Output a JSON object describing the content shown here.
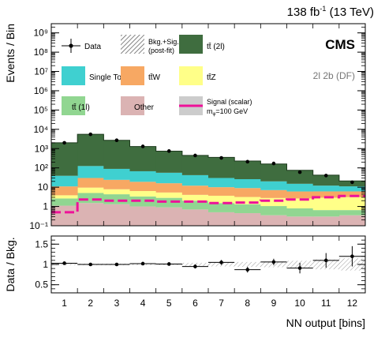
{
  "header": {
    "lumi_value": "138 fb",
    "lumi_exp": "-1",
    "lumi_energy": "(13 TeV)",
    "experiment": "CMS",
    "category": "2l 2b (DF)"
  },
  "legend": {
    "data": "Data",
    "bkg_sig_line1": "Bkg.+Sig.",
    "bkg_sig_line2": "(post-fit)",
    "ttbar_2l": "tt̄ (2l)",
    "single_top": "Single Top",
    "ttw": "tt̄W",
    "ttz": "tt̄Z",
    "ttbar_1l": "tt̄ (1l)",
    "other": "Other",
    "signal_line1": "Signal (scalar)",
    "signal_line2": "m",
    "signal_sub": "φ",
    "signal_mass": "=100 GeV"
  },
  "colors": {
    "ttbar_2l": "#3f6d3f",
    "single_top": "#3fd0d0",
    "ttw": "#f7a863",
    "ttz": "#ffff88",
    "ttbar_1l": "#91d691",
    "other": "#dbb3b3",
    "signal": "#ee1199",
    "data": "#000000"
  },
  "chart_data": [
    {
      "type": "bar",
      "stacked": true,
      "ylabel": "Events / Bin",
      "y_scale": "log",
      "ylim": [
        0.1,
        3000000000
      ],
      "y_ticks": [
        "10⁻¹",
        "1",
        "10",
        "10²",
        "10³",
        "10⁴",
        "10⁵",
        "10⁶",
        "10⁷",
        "10⁸",
        "10⁹"
      ],
      "x": [
        1,
        2,
        3,
        4,
        5,
        6,
        7,
        8,
        9,
        10,
        11,
        12
      ],
      "x_ticks": [
        "1",
        "2",
        "3",
        "4",
        "5",
        "6",
        "7",
        "8",
        "9",
        "10",
        "11",
        "12"
      ],
      "series": [
        {
          "name": "Other",
          "values": [
            1.1,
            1.5,
            1.3,
            1.0,
            0.9,
            0.7,
            0.5,
            0.45,
            0.35,
            0.3,
            0.3,
            0.35
          ]
        },
        {
          "name": "tt̄ (1l)",
          "values": [
            1.5,
            3.5,
            3.0,
            2.3,
            1.9,
            1.3,
            1.0,
            0.85,
            0.7,
            0.5,
            0.35,
            0.3
          ]
        },
        {
          "name": "tt̄Z",
          "values": [
            1.2,
            4.5,
            3.5,
            3.0,
            2.5,
            2.0,
            2.1,
            1.8,
            1.7,
            1.8,
            2.2,
            2.4
          ]
        },
        {
          "name": "tt̄W",
          "values": [
            7.2,
            20.5,
            16.2,
            12.7,
            10.7,
            8.0,
            6.4,
            5.9,
            4.3,
            3.4,
            3.2,
            3.0
          ]
        },
        {
          "name": "Single Top",
          "values": [
            28,
            95,
            65,
            48,
            40,
            30,
            20,
            17,
            13,
            9,
            6,
            5
          ]
        },
        {
          "name": "tt̄ (2l)",
          "values": [
            1960,
            5380,
            2600,
            1220,
            680,
            400,
            320,
            200,
            140,
            60,
            30,
            10
          ]
        }
      ],
      "signal": {
        "name": "Signal (scalar)",
        "values": [
          0.5,
          2.3,
          2.0,
          2.0,
          1.8,
          1.8,
          1.5,
          1.6,
          2.0,
          2.3,
          3.0,
          3.5
        ]
      },
      "data": {
        "name": "Data",
        "values": [
          2000,
          5500,
          2700,
          1300,
          750,
          440,
          330,
          210,
          170,
          60,
          40,
          18
        ]
      }
    },
    {
      "type": "scatter",
      "ylabel": "Data / Bkg.",
      "xlabel": "NN output [bins]",
      "ylim": [
        0.3,
        1.7
      ],
      "y_ticks": [
        "0.5",
        "1",
        "1.5"
      ],
      "x": [
        1,
        2,
        3,
        4,
        5,
        6,
        7,
        8,
        9,
        10,
        11,
        12
      ],
      "values": [
        1.03,
        1.0,
        1.0,
        1.02,
        1.01,
        0.95,
        1.05,
        0.87,
        1.06,
        0.91,
        1.1,
        1.2
      ],
      "errors": [
        0.03,
        0.02,
        0.02,
        0.03,
        0.04,
        0.05,
        0.06,
        0.07,
        0.08,
        0.13,
        0.18,
        0.25
      ],
      "band": [
        0.02,
        0.02,
        0.02,
        0.02,
        0.02,
        0.04,
        0.05,
        0.06,
        0.07,
        0.09,
        0.12,
        0.15
      ]
    }
  ]
}
